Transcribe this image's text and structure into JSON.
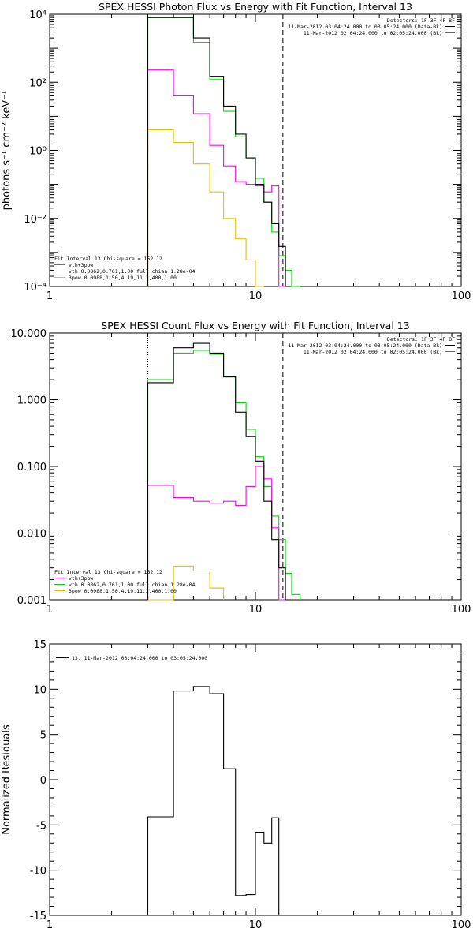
{
  "colors": {
    "data": "#000000",
    "total_fit": "#ff00ff",
    "vth_fit": "#00dd00",
    "three_pow_fit": "#e8c000",
    "background": "#ffffff"
  },
  "chart_data": [
    {
      "type": "line",
      "title": "SPEX HESSI Photon Flux vs Energy with Fit Function, Interval 13",
      "xlabel": "",
      "ylabel": "photons s⁻¹ cm⁻² keV⁻¹",
      "xscale": "log",
      "yscale": "log",
      "xlim": [
        1,
        100
      ],
      "ylim": [
        0.0001,
        10000
      ],
      "xticks": [
        1,
        10,
        100
      ],
      "xtick_labels": [
        "1",
        "10",
        "100"
      ],
      "yticks": [
        0.0001,
        0.01,
        1,
        100,
        10000
      ],
      "ytick_labels": [
        "10⁻⁴",
        "10⁻²",
        "10⁰",
        "10²",
        "10⁴"
      ],
      "dotted_line_x": 3.0,
      "dashed_line_x": 13.6,
      "legend_top": {
        "header": "Detectors: 1F 3F 4F 8F",
        "entries": [
          {
            "text": "11-Mar-2012 03:04:24.000 to 03:05:24.000 (Data-Bk)",
            "color": "#000000"
          },
          {
            "text": "11-Mar-2012 02:04:24.000 to 02:05:24.000 (Bk)",
            "color": "#ff00ff"
          }
        ]
      },
      "legend_bottom": {
        "header": "Fit Interval 13   Chi-square = 162.12",
        "entries": [
          {
            "text": "vth+3pow",
            "color": "#ff00ff"
          },
          {
            "text": "vth 0.0862,0.761,1.00  full chian 1.28e-04",
            "color": "#00dd00"
          },
          {
            "text": "3pow 0.0988,1.50,4.19,11.2,400,1.00",
            "color": "#e8c000"
          }
        ]
      },
      "bin_edges": [
        3.0,
        4.0,
        5.0,
        6.0,
        7.0,
        8.0,
        9.0,
        10.0,
        11.0,
        12.0,
        13.0,
        14.0,
        15.0,
        16.5
      ],
      "series": [
        {
          "name": "Data-Bk",
          "color": "#000000",
          "values": [
            8000,
            8000,
            2000,
            150,
            20,
            3,
            0.6,
            0.1,
            0.03,
            0.007,
            0.0015,
            null,
            null
          ]
        },
        {
          "name": "vth+3pow",
          "color": "#ff00ff",
          "values": [
            230,
            40,
            12,
            1.4,
            0.35,
            0.12,
            0.1,
            0.09,
            0.06,
            0.09,
            0.0001,
            null,
            null
          ]
        },
        {
          "name": "vth",
          "color": "#00dd00",
          "values": [
            8000,
            8000,
            1500,
            120,
            14,
            2.5,
            0.6,
            0.15,
            0.03,
            0.004,
            0.0008,
            0.0003,
            0.0001
          ]
        },
        {
          "name": "3pow",
          "color": "#e8c000",
          "values": [
            4,
            1.7,
            0.4,
            0.06,
            0.01,
            0.0025,
            0.0006,
            0.0001,
            null,
            null,
            null,
            null,
            null
          ]
        }
      ]
    },
    {
      "type": "line",
      "title": "SPEX HESSI Count Flux vs Energy with Fit Function, Interval 13",
      "xlabel": "",
      "ylabel": "",
      "xscale": "log",
      "yscale": "log",
      "xlim": [
        1,
        100
      ],
      "ylim": [
        0.001,
        10
      ],
      "xticks": [
        1,
        10,
        100
      ],
      "xtick_labels": [
        "1",
        "10",
        "100"
      ],
      "yticks": [
        0.001,
        0.01,
        0.1,
        1,
        10
      ],
      "ytick_labels": [
        "0.001",
        "0.010",
        "0.100",
        "1.000",
        "10.000"
      ],
      "dotted_line_x": 3.0,
      "dashed_line_x": 13.6,
      "legend_top": {
        "header": "Detectors: 1F 3F 4F 8F",
        "entries": [
          {
            "text": "11-Mar-2012 03:04:24.000 to 03:05:24.000 (Data-Bk)",
            "color": "#000000"
          },
          {
            "text": "11-Mar-2012 02:04:24.000 to 02:05:24.000 (Bk)",
            "color": "#ff00ff"
          }
        ]
      },
      "legend_bottom": {
        "header": "Fit Interval 13   Chi-square = 162.12",
        "entries": [
          {
            "text": "vth+3pow",
            "color": "#ff00ff"
          },
          {
            "text": "vth 0.0862,0.761,1.00  full chian 1.28e-04",
            "color": "#00dd00"
          },
          {
            "text": "3pow 0.0988,1.50,4.19,11.2,400,1.00",
            "color": "#e8c000"
          }
        ]
      },
      "bin_edges": [
        3.0,
        4.0,
        5.0,
        6.0,
        7.0,
        8.0,
        9.0,
        10.0,
        11.0,
        12.0,
        13.0,
        14.0,
        15.0,
        16.5
      ],
      "series": [
        {
          "name": "Data-Bk",
          "color": "#000000",
          "values": [
            1.8,
            6.0,
            7.0,
            5.0,
            2.2,
            0.65,
            0.28,
            0.12,
            0.03,
            0.008,
            0.003,
            null,
            null
          ]
        },
        {
          "name": "Bk",
          "color": "#ff00ff",
          "values": [
            0.052,
            0.034,
            0.03,
            0.028,
            0.03,
            0.026,
            0.05,
            0.1,
            0.065,
            0.012,
            0.0008,
            null,
            null
          ]
        },
        {
          "name": "vth",
          "color": "#00dd00",
          "values": [
            2.0,
            5.0,
            5.5,
            4.8,
            2.2,
            0.9,
            0.36,
            0.14,
            0.05,
            0.018,
            0.008,
            0.0025,
            0.0012
          ]
        },
        {
          "name": "3pow",
          "color": "#e8c000",
          "values": [
            0.0008,
            0.0032,
            0.0027,
            0.0015,
            null,
            null,
            null,
            null,
            null,
            null,
            null,
            null,
            null
          ]
        }
      ]
    },
    {
      "type": "line",
      "title": "",
      "xlabel": "",
      "ylabel": "Normalized Residuals",
      "xscale": "log",
      "yscale": "linear",
      "xlim": [
        1,
        100
      ],
      "ylim": [
        -15,
        15
      ],
      "xticks": [
        1,
        10,
        100
      ],
      "xtick_labels": [
        "1",
        "10",
        "100"
      ],
      "yticks": [
        -15,
        -10,
        -5,
        0,
        5,
        10,
        15
      ],
      "ytick_labels": [
        "-15",
        "-10",
        "-5",
        "0",
        "5",
        "10",
        "15"
      ],
      "legend": {
        "entries": [
          {
            "text": "13. 11-Mar-2012 03:04:24.000 to 03:05:24.000",
            "color": "#000000"
          }
        ]
      },
      "bin_edges": [
        3.0,
        4.0,
        5.0,
        6.0,
        7.0,
        8.0,
        9.0,
        10.0,
        11.0,
        12.0,
        13.0
      ],
      "series": [
        {
          "name": "13. 11-Mar-2012 03:04:24.000 to 03:05:24.000",
          "color": "#000000",
          "values": [
            -4.1,
            9.8,
            10.3,
            9.5,
            1.2,
            -12.8,
            -12.7,
            -5.8,
            -7.0,
            -4.2
          ]
        }
      ]
    }
  ]
}
